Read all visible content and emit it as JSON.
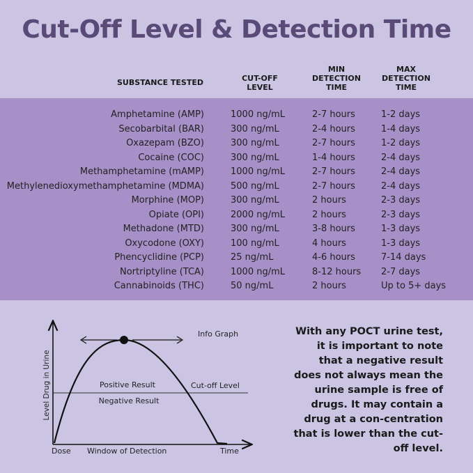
{
  "title": "Cut-Off Level & Detection Time",
  "headers": {
    "substance": "SUBSTANCE TESTED",
    "cutoff": [
      "CUT-OFF",
      "LEVEL"
    ],
    "min": [
      "MIN",
      "DETECTION",
      "TIME"
    ],
    "max": [
      "MAX",
      "DETECTION",
      "TIME"
    ]
  },
  "rows": [
    {
      "substance": "Amphetamine (AMP)",
      "cutoff": "1000 ng/mL",
      "min": "2-7 hours",
      "max": "1-2 days"
    },
    {
      "substance": "Secobarbital (BAR)",
      "cutoff": "300 ng/mL",
      "min": "2-4 hours",
      "max": "1-4 days"
    },
    {
      "substance": "Oxazepam (BZO)",
      "cutoff": "300 ng/mL",
      "min": "2-7 hours",
      "max": "1-2 days"
    },
    {
      "substance": "Cocaine (COC)",
      "cutoff": "300 ng/mL",
      "min": "1-4 hours",
      "max": "2-4 days"
    },
    {
      "substance": "Methamphetamine (mAMP)",
      "cutoff": "1000 ng/mL",
      "min": "2-7 hours",
      "max": "2-4 days"
    },
    {
      "substance": "Methylenedioxymethamphetamine (MDMA)",
      "cutoff": "500 ng/mL",
      "min": "2-7 hours",
      "max": "2-4 days"
    },
    {
      "substance": "Morphine (MOP)",
      "cutoff": "300 ng/mL",
      "min": "2 hours",
      "max": "2-3 days"
    },
    {
      "substance": "Opiate (OPI)",
      "cutoff": "2000 ng/mL",
      "min": "2 hours",
      "max": "2-3 days"
    },
    {
      "substance": "Methadone (MTD)",
      "cutoff": "300 ng/mL",
      "min": "3-8 hours",
      "max": "1-3 days"
    },
    {
      "substance": "Oxycodone (OXY)",
      "cutoff": "100 ng/mL",
      "min": "4 hours",
      "max": "1-3 days"
    },
    {
      "substance": "Phencyclidine (PCP)",
      "cutoff": "25 ng/mL",
      "min": "4-6 hours",
      "max": "7-14 days"
    },
    {
      "substance": "Nortriptyline (TCA)",
      "cutoff": "1000 ng/mL",
      "min": "8-12 hours",
      "max": "2-7 days"
    },
    {
      "substance": "Cannabinoids (THC)",
      "cutoff": "50 ng/mL",
      "min": "2 hours",
      "max": "Up to 5+ days"
    }
  ],
  "graph": {
    "title": "Info Graph",
    "ylabel": "Level Drug in Urine",
    "positive": "Positive Result",
    "negative": "Negative Result",
    "cutoff_label": "Cut-off Level",
    "dose": "Dose",
    "window": "Window of Detection",
    "time": "Time"
  },
  "note": "With any POCT urine test, it is important to note that a negative result does not always mean the urine sample is free of drugs. It may contain a drug at a con-centration that is lower than the cut-off level.",
  "colors": {
    "background": "#cbc5e3",
    "band": "#a78fc7",
    "title": "#5a4a78"
  }
}
